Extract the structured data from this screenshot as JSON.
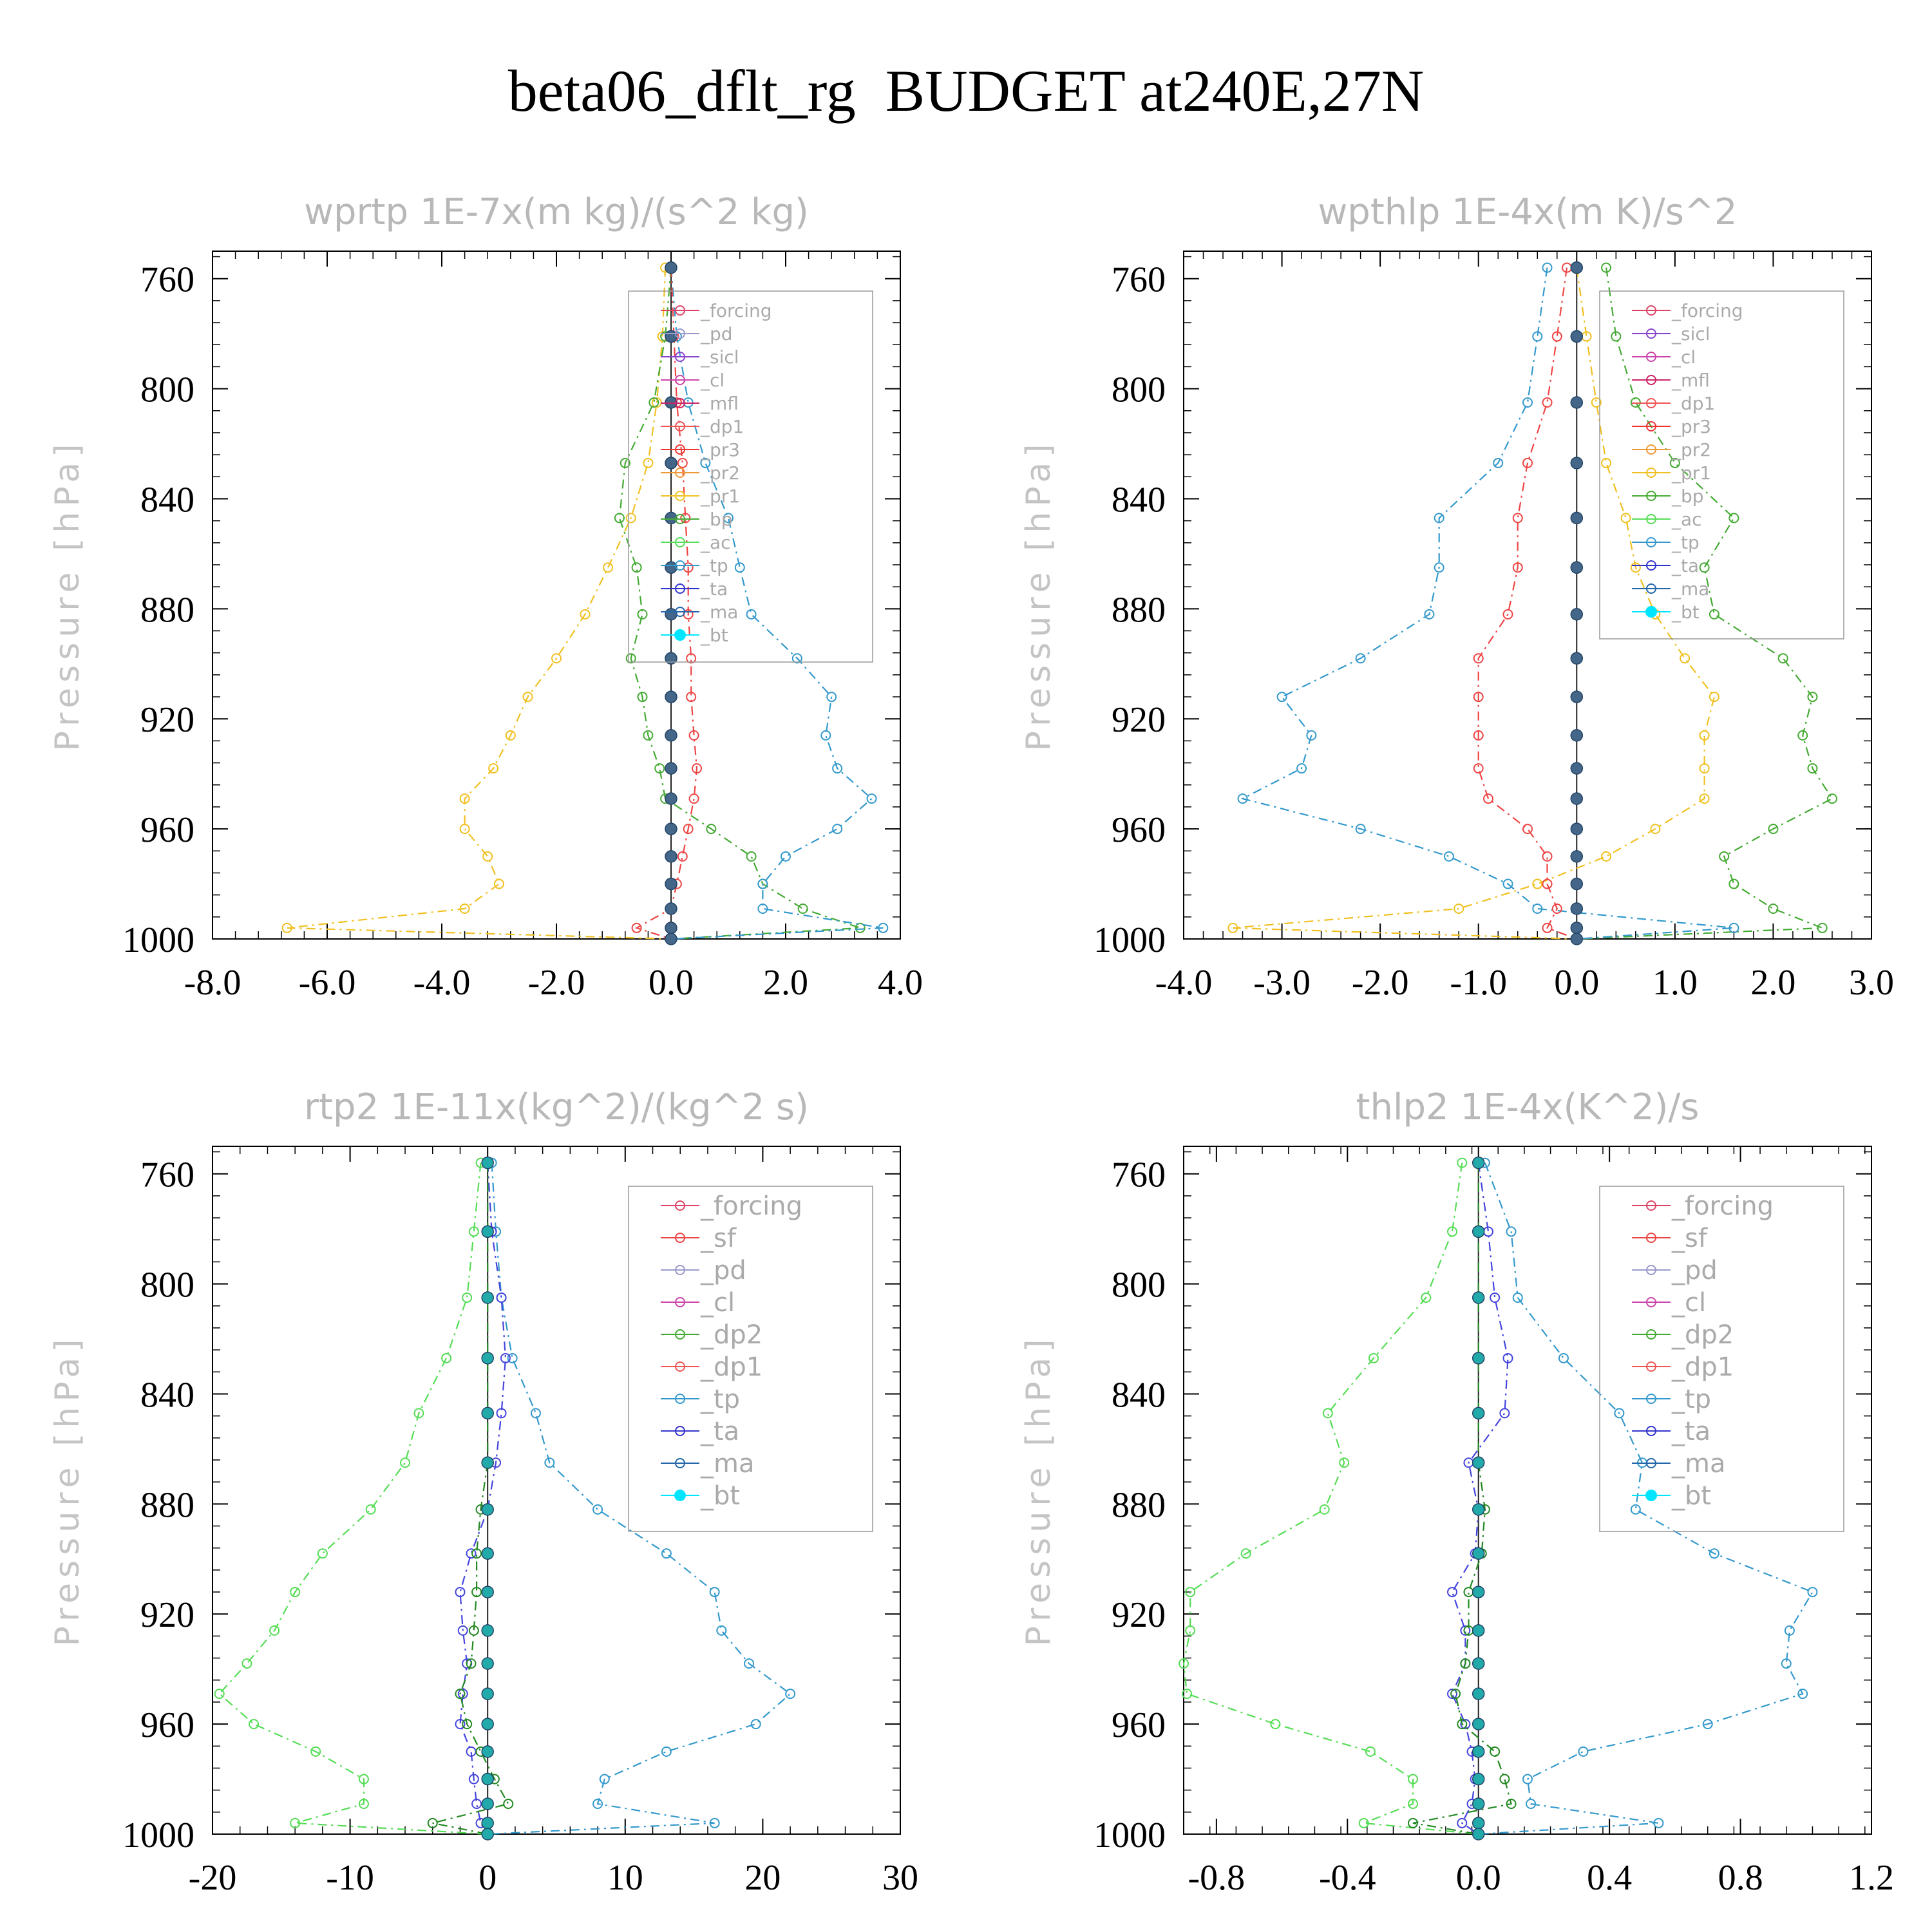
{
  "page": {
    "title": "beta06_dflt_rg  BUDGET at240E,27N"
  },
  "chart_data": [
    {
      "type": "line",
      "title": "wprtp  1E-7x(m kg)/(s^2 kg)",
      "ylabel": "Pressure [hPa]",
      "xlim": [
        -8.0,
        4.0
      ],
      "ylim": [
        1000,
        750
      ],
      "xticks": [
        "-8.0",
        "-6.0",
        "-4.0",
        "-2.0",
        "0.0",
        "2.0",
        "4.0"
      ],
      "yticks": [
        "760",
        "800",
        "840",
        "880",
        "920",
        "960",
        "1000"
      ],
      "legend": [
        "_forcing",
        "_pd",
        "_sicl",
        "_cl",
        "_mfl",
        "_dp1",
        "_pr3",
        "_pr2",
        "_pr1",
        "_bp",
        "_ac",
        "_tp",
        "_ta",
        "_ma",
        "_bt"
      ],
      "pressure": [
        756,
        781,
        805,
        827,
        847,
        865,
        882,
        898,
        912,
        926,
        938,
        949,
        960,
        970,
        980,
        989,
        996,
        1000
      ],
      "series": [
        {
          "name": "_pr1",
          "color": "#f0c020",
          "values": [
            -0.1,
            -0.15,
            -0.25,
            -0.4,
            -0.7,
            -1.1,
            -1.5,
            -2.0,
            -2.5,
            -2.8,
            -3.1,
            -3.6,
            -3.6,
            -3.2,
            -3.0,
            -3.6,
            -6.7,
            0.0
          ]
        },
        {
          "name": "_bp",
          "color": "#44aa33",
          "values": [
            0.0,
            -0.1,
            -0.3,
            -0.8,
            -0.9,
            -0.6,
            -0.5,
            -0.7,
            -0.5,
            -0.4,
            -0.2,
            -0.1,
            0.7,
            1.4,
            1.6,
            2.3,
            3.3,
            0.0
          ]
        },
        {
          "name": "_tp",
          "color": "#3399cc",
          "values": [
            0.0,
            0.1,
            0.3,
            0.6,
            1.0,
            1.2,
            1.4,
            2.2,
            2.8,
            2.7,
            2.9,
            3.5,
            2.9,
            2.0,
            1.6,
            1.6,
            3.7,
            0.0
          ]
        },
        {
          "name": "_dp1",
          "color": "#ee4444",
          "values": [
            0.0,
            0.05,
            0.1,
            0.2,
            0.25,
            0.3,
            0.3,
            0.35,
            0.35,
            0.4,
            0.45,
            0.4,
            0.3,
            0.2,
            0.1,
            0.0,
            -0.6,
            0.0
          ]
        }
      ]
    },
    {
      "type": "line",
      "title": "wpthlp  1E-4x(m K)/s^2",
      "ylabel": "Pressure [hPa]",
      "xlim": [
        -4.0,
        3.0
      ],
      "ylim": [
        1000,
        750
      ],
      "xticks": [
        "-4.0",
        "-3.0",
        "-2.0",
        "-1.0",
        "0.0",
        "1.0",
        "2.0",
        "3.0"
      ],
      "yticks": [
        "760",
        "800",
        "840",
        "880",
        "920",
        "960",
        "1000"
      ],
      "legend": [
        "_forcing",
        "_sicl",
        "_cl",
        "_mfl",
        "_dp1",
        "_pr3",
        "_pr2",
        "_pr1",
        "_bp",
        "_ac",
        "_tp",
        "_ta",
        "_ma",
        "_bt"
      ],
      "pressure": [
        756,
        781,
        805,
        827,
        847,
        865,
        882,
        898,
        912,
        926,
        938,
        949,
        960,
        970,
        980,
        989,
        996,
        1000
      ],
      "series": [
        {
          "name": "_pr1",
          "color": "#f0c020",
          "values": [
            0.0,
            0.1,
            0.2,
            0.3,
            0.5,
            0.6,
            0.8,
            1.1,
            1.4,
            1.3,
            1.3,
            1.3,
            0.8,
            0.3,
            -0.4,
            -1.2,
            -3.5,
            0.0
          ]
        },
        {
          "name": "_bp",
          "color": "#44aa33",
          "values": [
            0.3,
            0.4,
            0.6,
            1.0,
            1.6,
            1.3,
            1.4,
            2.1,
            2.4,
            2.3,
            2.4,
            2.6,
            2.0,
            1.5,
            1.6,
            2.0,
            2.5,
            0.0
          ]
        },
        {
          "name": "_tp",
          "color": "#3399cc",
          "values": [
            -0.3,
            -0.4,
            -0.5,
            -0.8,
            -1.4,
            -1.4,
            -1.5,
            -2.2,
            -3.0,
            -2.7,
            -2.8,
            -3.4,
            -2.2,
            -1.3,
            -0.7,
            -0.4,
            1.6,
            0.0
          ]
        },
        {
          "name": "_dp1",
          "color": "#ee4444",
          "values": [
            -0.1,
            -0.2,
            -0.3,
            -0.5,
            -0.6,
            -0.6,
            -0.7,
            -1.0,
            -1.0,
            -1.0,
            -1.0,
            -0.9,
            -0.5,
            -0.3,
            -0.3,
            -0.2,
            -0.3,
            0.0
          ]
        }
      ]
    },
    {
      "type": "line",
      "title": "rtp2  1E-11x(kg^2)/(kg^2 s)",
      "ylabel": "Pressure [hPa]",
      "xlim": [
        -20,
        30
      ],
      "ylim": [
        1000,
        750
      ],
      "xticks": [
        "-20",
        "-10",
        "0",
        "10",
        "20",
        "30"
      ],
      "yticks": [
        "760",
        "800",
        "840",
        "880",
        "920",
        "960",
        "1000"
      ],
      "legend": [
        "_forcing",
        "_sf",
        "_pd",
        "_cl",
        "_dp2",
        "_dp1",
        "_tp",
        "_ta",
        "_ma",
        "_bt"
      ],
      "pressure": [
        756,
        781,
        805,
        827,
        847,
        865,
        882,
        898,
        912,
        926,
        938,
        949,
        960,
        970,
        980,
        989,
        996,
        1000
      ],
      "series": [
        {
          "name": "_dp1",
          "color": "#55dd55",
          "values": [
            -0.5,
            -1.0,
            -1.5,
            -3.0,
            -5.0,
            -6.0,
            -8.5,
            -12.0,
            -14.0,
            -15.5,
            -17.5,
            -19.5,
            -17.0,
            -12.5,
            -9.0,
            -9.0,
            -14.0,
            0.0
          ]
        },
        {
          "name": "_tp",
          "color": "#3399cc",
          "values": [
            0.3,
            0.6,
            1.0,
            1.8,
            3.5,
            4.5,
            8.0,
            13.0,
            16.5,
            17.0,
            19.0,
            22.0,
            19.5,
            13.0,
            8.5,
            8.0,
            16.5,
            0.0
          ]
        },
        {
          "name": "_ta",
          "color": "#4444dd",
          "values": [
            0.0,
            0.3,
            1.0,
            1.3,
            1.0,
            0.6,
            0.0,
            -1.2,
            -2.0,
            -1.8,
            -1.5,
            -1.8,
            -2.0,
            -1.2,
            -1.0,
            -0.8,
            -0.5,
            0.0
          ]
        },
        {
          "name": "_dp2",
          "color": "#228822",
          "values": [
            0.0,
            0.0,
            0.0,
            0.0,
            0.0,
            0.0,
            -0.5,
            -0.8,
            -0.8,
            -1.0,
            -1.2,
            -2.0,
            -1.5,
            -0.5,
            0.5,
            1.5,
            -4.0,
            0.0
          ]
        }
      ]
    },
    {
      "type": "line",
      "title": "thlp2  1E-4x(K^2)/s",
      "ylabel": "Pressure [hPa]",
      "xlim": [
        -0.9,
        1.2
      ],
      "ylim": [
        1000,
        750
      ],
      "xticks": [
        "-0.8",
        "-0.4",
        "0.0",
        "0.4",
        "0.8",
        "1.2"
      ],
      "yticks": [
        "760",
        "800",
        "840",
        "880",
        "920",
        "960",
        "1000"
      ],
      "legend": [
        "_forcing",
        "_sf",
        "_pd",
        "_cl",
        "_dp2",
        "_dp1",
        "_tp",
        "_ta",
        "_ma",
        "_bt"
      ],
      "pressure": [
        756,
        781,
        805,
        827,
        847,
        865,
        882,
        898,
        912,
        926,
        938,
        949,
        960,
        970,
        980,
        989,
        996,
        1000
      ],
      "series": [
        {
          "name": "_dp1",
          "color": "#55dd55",
          "values": [
            -0.05,
            -0.08,
            -0.16,
            -0.32,
            -0.46,
            -0.41,
            -0.47,
            -0.71,
            -0.88,
            -0.88,
            -0.9,
            -0.89,
            -0.62,
            -0.33,
            -0.2,
            -0.2,
            -0.35,
            0.0
          ]
        },
        {
          "name": "_tp",
          "color": "#3399cc",
          "values": [
            0.02,
            0.1,
            0.12,
            0.26,
            0.43,
            0.5,
            0.48,
            0.72,
            1.02,
            0.95,
            0.94,
            0.99,
            0.7,
            0.32,
            0.15,
            0.16,
            0.55,
            0.0
          ]
        },
        {
          "name": "_ta",
          "color": "#4444dd",
          "values": [
            0.0,
            0.03,
            0.05,
            0.09,
            0.08,
            -0.03,
            0.0,
            -0.01,
            -0.08,
            -0.04,
            -0.04,
            -0.08,
            -0.04,
            -0.02,
            -0.01,
            -0.02,
            -0.05,
            0.0
          ]
        },
        {
          "name": "_dp2",
          "color": "#228822",
          "values": [
            0.0,
            0.0,
            0.0,
            0.0,
            0.0,
            0.0,
            0.02,
            0.01,
            -0.03,
            -0.03,
            -0.04,
            -0.07,
            -0.05,
            0.05,
            0.08,
            0.1,
            -0.2,
            0.0
          ]
        }
      ]
    }
  ]
}
